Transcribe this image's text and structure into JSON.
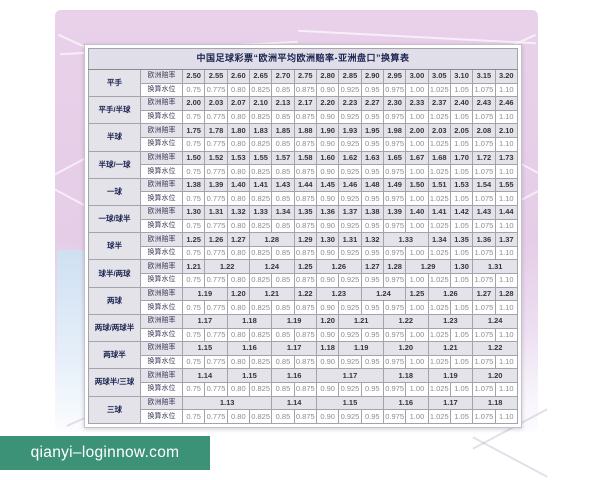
{
  "chart_data": {
    "type": "table",
    "title": "中国足球彩票“欧洲平均欧洲赔率-亚洲盘口”换算表",
    "row_labels": {
      "odds": "欧洲赔率",
      "water": "换算水位"
    },
    "water_values": [
      "0.75",
      "0.775",
      "0.80",
      "0.825",
      "0.85",
      "0.875",
      "0.90",
      "0.925",
      "0.95",
      "0.975",
      "1.00",
      "1.025",
      "1.05",
      "1.075",
      "1.10"
    ],
    "groups": [
      {
        "label": "平手",
        "odds": [
          {
            "v": "2.50"
          },
          {
            "v": "2.55"
          },
          {
            "v": "2.60"
          },
          {
            "v": "2.65"
          },
          {
            "v": "2.70"
          },
          {
            "v": "2.75"
          },
          {
            "v": "2.80"
          },
          {
            "v": "2.85"
          },
          {
            "v": "2.90"
          },
          {
            "v": "2.95"
          },
          {
            "v": "3.00"
          },
          {
            "v": "3.05"
          },
          {
            "v": "3.10"
          },
          {
            "v": "3.15"
          },
          {
            "v": "3.20"
          }
        ]
      },
      {
        "label": "平手/半球",
        "odds": [
          {
            "v": "2.00"
          },
          {
            "v": "2.03"
          },
          {
            "v": "2.07"
          },
          {
            "v": "2.10"
          },
          {
            "v": "2.13"
          },
          {
            "v": "2.17"
          },
          {
            "v": "2.20"
          },
          {
            "v": "2.23"
          },
          {
            "v": "2.27"
          },
          {
            "v": "2.30"
          },
          {
            "v": "2.33"
          },
          {
            "v": "2.37"
          },
          {
            "v": "2.40"
          },
          {
            "v": "2.43"
          },
          {
            "v": "2.46"
          }
        ]
      },
      {
        "label": "半球",
        "odds": [
          {
            "v": "1.75"
          },
          {
            "v": "1.78"
          },
          {
            "v": "1.80"
          },
          {
            "v": "1.83"
          },
          {
            "v": "1.85"
          },
          {
            "v": "1.88"
          },
          {
            "v": "1.90"
          },
          {
            "v": "1.93"
          },
          {
            "v": "1.95"
          },
          {
            "v": "1.98"
          },
          {
            "v": "2.00"
          },
          {
            "v": "2.03"
          },
          {
            "v": "2.05"
          },
          {
            "v": "2.08"
          },
          {
            "v": "2.10"
          }
        ]
      },
      {
        "label": "半球/一球",
        "odds": [
          {
            "v": "1.50"
          },
          {
            "v": "1.52"
          },
          {
            "v": "1.53"
          },
          {
            "v": "1.55"
          },
          {
            "v": "1.57"
          },
          {
            "v": "1.58"
          },
          {
            "v": "1.60"
          },
          {
            "v": "1.62"
          },
          {
            "v": "1.63"
          },
          {
            "v": "1.65"
          },
          {
            "v": "1.67"
          },
          {
            "v": "1.68"
          },
          {
            "v": "1.70"
          },
          {
            "v": "1.72"
          },
          {
            "v": "1.73"
          }
        ]
      },
      {
        "label": "一球",
        "odds": [
          {
            "v": "1.38"
          },
          {
            "v": "1.39"
          },
          {
            "v": "1.40"
          },
          {
            "v": "1.41"
          },
          {
            "v": "1.43"
          },
          {
            "v": "1.44"
          },
          {
            "v": "1.45"
          },
          {
            "v": "1.46"
          },
          {
            "v": "1.48"
          },
          {
            "v": "1.49"
          },
          {
            "v": "1.50"
          },
          {
            "v": "1.51"
          },
          {
            "v": "1.53"
          },
          {
            "v": "1.54"
          },
          {
            "v": "1.55"
          }
        ]
      },
      {
        "label": "一球/球半",
        "odds": [
          {
            "v": "1.30"
          },
          {
            "v": "1.31"
          },
          {
            "v": "1.32"
          },
          {
            "v": "1.33"
          },
          {
            "v": "1.34"
          },
          {
            "v": "1.35"
          },
          {
            "v": "1.36"
          },
          {
            "v": "1.37"
          },
          {
            "v": "1.38"
          },
          {
            "v": "1.39"
          },
          {
            "v": "1.40"
          },
          {
            "v": "1.41"
          },
          {
            "v": "1.42"
          },
          {
            "v": "1.43"
          },
          {
            "v": "1.44"
          }
        ]
      },
      {
        "label": "球半",
        "odds": [
          {
            "v": "1.25"
          },
          {
            "v": "1.26"
          },
          {
            "v": "1.27"
          },
          {
            "v": "1.28",
            "s": 2
          },
          {
            "v": "1.29"
          },
          {
            "v": "1.30"
          },
          {
            "v": "1.31"
          },
          {
            "v": "1.32"
          },
          {
            "v": "1.33",
            "s": 2
          },
          {
            "v": "1.34"
          },
          {
            "v": "1.35"
          },
          {
            "v": "1.36"
          },
          {
            "v": "1.37"
          }
        ]
      },
      {
        "label": "球半/两球",
        "odds": [
          {
            "v": "1.21"
          },
          {
            "v": "1.22",
            "s": 2
          },
          {
            "v": "1.24",
            "s": 2
          },
          {
            "v": "1.25"
          },
          {
            "v": "1.26",
            "s": 2
          },
          {
            "v": "1.27"
          },
          {
            "v": "1.28"
          },
          {
            "v": "1.29",
            "s": 2
          },
          {
            "v": "1.30"
          },
          {
            "v": "1.31",
            "s": 2
          }
        ]
      },
      {
        "label": "两球",
        "odds": [
          {
            "v": "1.19",
            "s": 2
          },
          {
            "v": "1.20"
          },
          {
            "v": "1.21",
            "s": 2
          },
          {
            "v": "1.22"
          },
          {
            "v": "1.23",
            "s": 2
          },
          {
            "v": "1.24",
            "s": 2
          },
          {
            "v": "1.25"
          },
          {
            "v": "1.26",
            "s": 2
          },
          {
            "v": "1.27"
          },
          {
            "v": "1.28"
          }
        ]
      },
      {
        "label": "两球/两球半",
        "odds": [
          {
            "v": "1.17",
            "s": 2
          },
          {
            "v": "1.18",
            "s": 2
          },
          {
            "v": "1.19",
            "s": 2
          },
          {
            "v": "1.20"
          },
          {
            "v": "1.21",
            "s": 2
          },
          {
            "v": "1.22",
            "s": 2
          },
          {
            "v": "1.23",
            "s": 2
          },
          {
            "v": "1.24",
            "s": 2
          }
        ]
      },
      {
        "label": "两球半",
        "odds": [
          {
            "v": "1.15",
            "s": 2
          },
          {
            "v": "1.16",
            "s": 2
          },
          {
            "v": "1.17",
            "s": 2
          },
          {
            "v": "1.18"
          },
          {
            "v": "1.19",
            "s": 2
          },
          {
            "v": "1.20",
            "s": 2
          },
          {
            "v": "1.21",
            "s": 2
          },
          {
            "v": "1.22",
            "s": 2
          }
        ]
      },
      {
        "label": "两球半/三球",
        "odds": [
          {
            "v": "1.14",
            "s": 2
          },
          {
            "v": "1.15",
            "s": 2
          },
          {
            "v": "1.16",
            "s": 2
          },
          {
            "v": "1.17",
            "s": 3
          },
          {
            "v": "1.18",
            "s": 2
          },
          {
            "v": "1.19",
            "s": 2
          },
          {
            "v": "1.20",
            "s": 2
          }
        ]
      },
      {
        "label": "三球",
        "odds": [
          {
            "v": "1.13",
            "s": 4
          },
          {
            "v": "1.14",
            "s": 2
          },
          {
            "v": "1.15",
            "s": 3
          },
          {
            "v": "1.16",
            "s": 2
          },
          {
            "v": "1.17",
            "s": 2
          },
          {
            "v": "1.18",
            "s": 2
          }
        ]
      }
    ]
  },
  "watermark": {
    "text": "qianyi–loginnow.com"
  },
  "colors": {
    "watermark_bg": "#3b9277",
    "envelope_pink": "#e7cfe8",
    "title_bg": "#e0dfe9",
    "odds_row_bg": "#e4e3ea",
    "label_text": "#1c2450",
    "cell_border": "#a3a3ab"
  }
}
